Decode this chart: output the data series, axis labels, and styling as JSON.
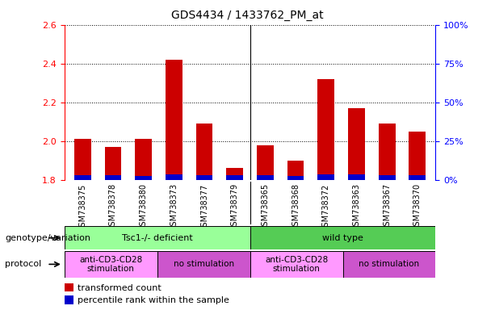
{
  "title": "GDS4434 / 1433762_PM_at",
  "categories": [
    "GSM738375",
    "GSM738378",
    "GSM738380",
    "GSM738373",
    "GSM738377",
    "GSM738379",
    "GSM738365",
    "GSM738368",
    "GSM738372",
    "GSM738363",
    "GSM738367",
    "GSM738370"
  ],
  "red_values": [
    2.01,
    1.97,
    2.01,
    2.42,
    2.09,
    1.86,
    1.98,
    1.9,
    2.32,
    2.17,
    2.09,
    2.05
  ],
  "blue_values": [
    0.025,
    0.022,
    0.02,
    0.03,
    0.024,
    0.022,
    0.025,
    0.02,
    0.028,
    0.026,
    0.024,
    0.022
  ],
  "y_min": 1.8,
  "y_max": 2.6,
  "y_ticks": [
    1.8,
    2.0,
    2.2,
    2.4,
    2.6
  ],
  "y2_ticks": [
    0,
    25,
    50,
    75,
    100
  ],
  "y2_labels": [
    "0%",
    "25%",
    "50%",
    "75%",
    "100%"
  ],
  "bar_color_red": "#cc0000",
  "bar_color_blue": "#0000cc",
  "background_color": "#ffffff",
  "plot_bg_color": "#ffffff",
  "xtick_bg_color": "#c8c8c8",
  "genotype_label": "genotype/variation",
  "protocol_label": "protocol",
  "genotype_groups": [
    {
      "label": "Tsc1-/- deficient",
      "start": 0,
      "end": 6,
      "color": "#99ff99"
    },
    {
      "label": "wild type",
      "start": 6,
      "end": 12,
      "color": "#55cc55"
    }
  ],
  "protocol_groups": [
    {
      "label": "anti-CD3-CD28\nstimulation",
      "start": 0,
      "end": 3,
      "color": "#ff99ff"
    },
    {
      "label": "no stimulation",
      "start": 3,
      "end": 6,
      "color": "#cc55cc"
    },
    {
      "label": "anti-CD3-CD28\nstimulation",
      "start": 6,
      "end": 9,
      "color": "#ff99ff"
    },
    {
      "label": "no stimulation",
      "start": 9,
      "end": 12,
      "color": "#cc55cc"
    }
  ],
  "legend_red": "transformed count",
  "legend_blue": "percentile rank within the sample",
  "fig_width": 6.13,
  "fig_height": 3.84,
  "dpi": 100
}
